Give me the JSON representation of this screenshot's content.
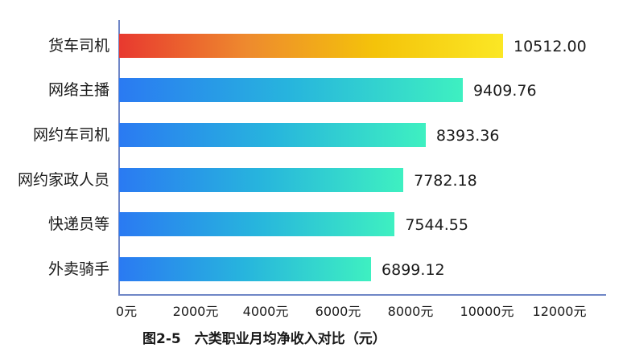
{
  "chart_data": {
    "type": "bar",
    "orientation": "horizontal",
    "title": "图2-5　六类职业月均净收入对比（元）",
    "xlabel": "",
    "ylabel": "",
    "categories": [
      "货车司机",
      "网络主播",
      "网约车司机",
      "网约家政人员",
      "快递员等",
      "外卖骑手"
    ],
    "values": [
      10512.0,
      9409.76,
      8393.36,
      7782.18,
      7544.55,
      6899.12
    ],
    "value_labels": [
      "10512.00",
      "9409.76",
      "8393.36",
      "7782.18",
      "7544.55",
      "6899.12"
    ],
    "xlim": [
      0,
      12000
    ],
    "x_ticks": [
      0,
      2000,
      4000,
      6000,
      8000,
      10000,
      12000
    ],
    "x_tick_labels": [
      "0元",
      "2000元",
      "4000元",
      "6000元",
      "8000元",
      "10000元",
      "12000元"
    ],
    "grid": false,
    "legend": null,
    "bar_gradients": {
      "highlight": [
        "#e8392f",
        "#ee8a2e",
        "#f4c30a",
        "#fbe725"
      ],
      "default": [
        "#2a7af2",
        "#27b5dd",
        "#3ef0c1"
      ]
    },
    "highlighted_category": "货车司机"
  },
  "caption": "图2-5　六类职业月均净收入对比（元）"
}
